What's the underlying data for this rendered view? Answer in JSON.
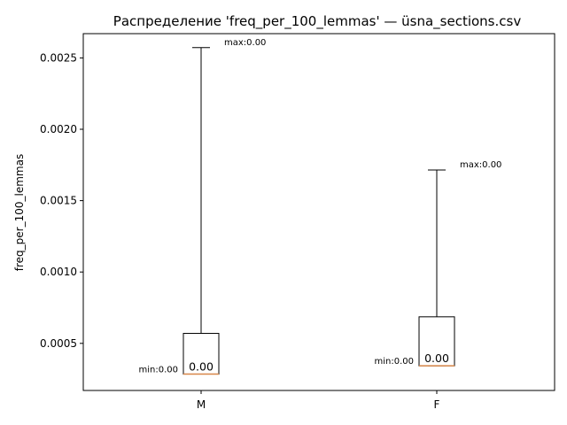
{
  "chart_data": {
    "type": "box",
    "title": "Распределение 'freq_per_100_lemmas' — üsna_sections.csv",
    "xlabel": "",
    "ylabel": "freq_per_100_lemmas",
    "categories": [
      "M",
      "F"
    ],
    "boxes": [
      {
        "name": "M",
        "min": 0.000285,
        "q1": 0.000285,
        "median": 0.000285,
        "q3": 0.00057,
        "max": 0.002572,
        "min_label": "min:0.00",
        "max_label": "max:0.00",
        "median_label": "0.00"
      },
      {
        "name": "F",
        "min": 0.000343,
        "q1": 0.000343,
        "median": 0.000343,
        "q3": 0.000686,
        "max": 0.001715,
        "min_label": "min:0.00",
        "max_label": "max:0.00",
        "median_label": "0.00"
      }
    ],
    "yticks": [
      0.0005,
      0.001,
      0.0015,
      0.002,
      0.0025
    ],
    "ytick_labels": [
      "0.0005",
      "0.0010",
      "0.0015",
      "0.0020",
      "0.0025"
    ],
    "ylim": [
      0.00017,
      0.00267
    ],
    "grid": false,
    "colors": {
      "box": "#000000",
      "median": "#d9884a"
    }
  }
}
